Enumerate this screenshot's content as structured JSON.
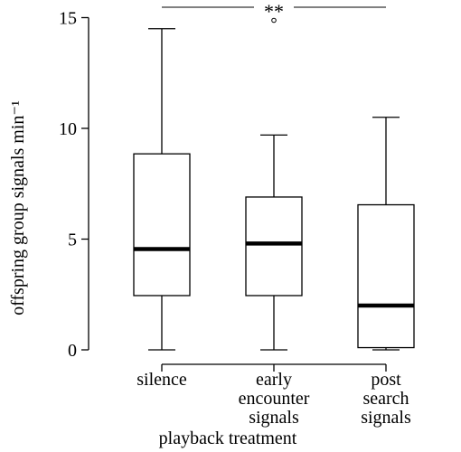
{
  "chart_data": {
    "type": "boxplot",
    "xlabel": "playback treatment",
    "ylabel": "offspring group signals min⁻¹",
    "ylim": [
      0,
      15.6
    ],
    "yticks": [
      "0",
      "5",
      "10",
      "15"
    ],
    "ytick_values": [
      0,
      5,
      10,
      15
    ],
    "grid": false,
    "categories": [
      [
        "silence"
      ],
      [
        "early",
        "encounter",
        "signals"
      ],
      [
        "post",
        "search",
        "signals"
      ]
    ],
    "boxes": [
      {
        "whisker_low": 0,
        "q1": 2.45,
        "median": 4.55,
        "q3": 8.85,
        "whisker_high": 14.5,
        "outliers": []
      },
      {
        "whisker_low": 0,
        "q1": 2.45,
        "median": 4.8,
        "q3": 6.9,
        "whisker_high": 9.7,
        "outliers": [
          15
        ]
      },
      {
        "whisker_low": 0,
        "q1": 0.1,
        "median": 2.0,
        "q3": 6.55,
        "whisker_high": 10.5,
        "outliers": []
      }
    ],
    "annotation": {
      "text": "**",
      "from_category": 0,
      "to_category": 2,
      "y": 15.5
    }
  }
}
